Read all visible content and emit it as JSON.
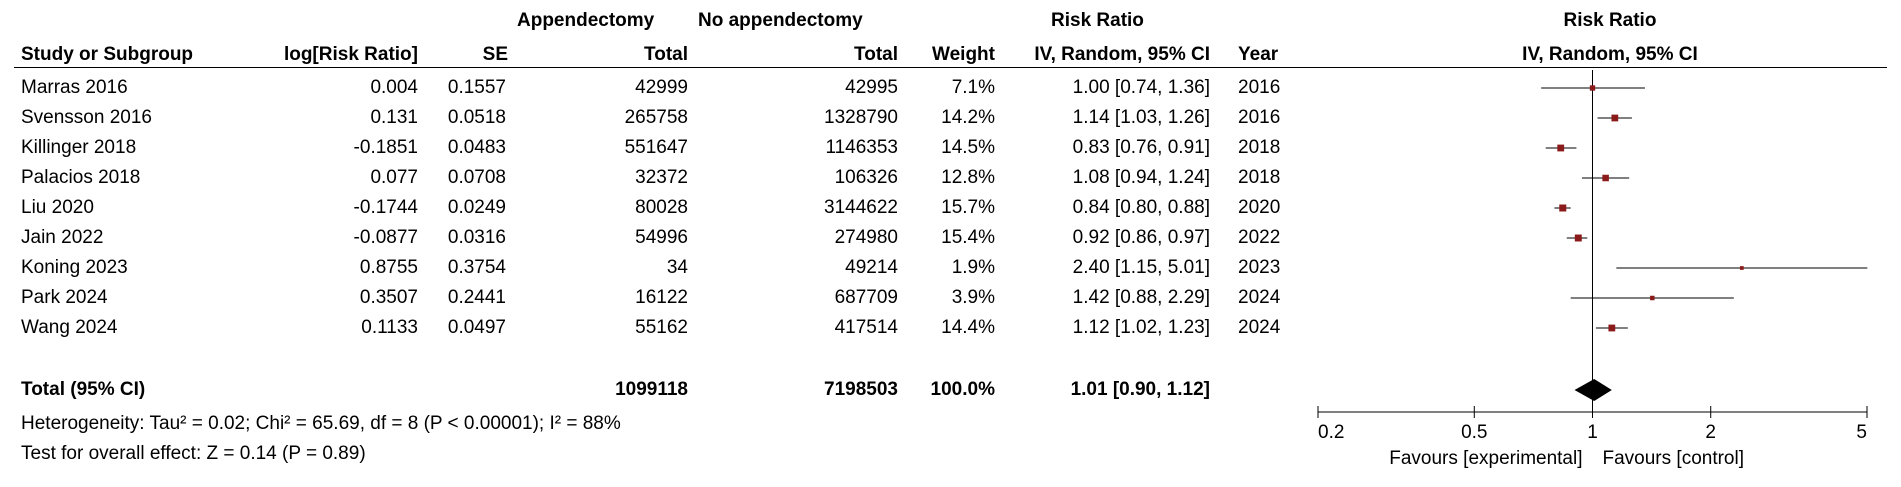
{
  "headers": {
    "group_appendectomy": "Appendectomy",
    "group_no_appendectomy": "No appendectomy",
    "group_risk_ratio": "Risk Ratio",
    "study": "Study or Subgroup",
    "log_rr": "log[Risk Ratio]",
    "se": "SE",
    "total_app": "Total",
    "total_noapp": "Total",
    "weight": "Weight",
    "ci_method": "IV, Random, 95% CI",
    "year": "Year",
    "plot_title": "Risk Ratio",
    "plot_method": "IV, Random, 95% CI"
  },
  "studies": [
    {
      "study": "Marras 2016",
      "log_rr": "0.004",
      "se": "0.1557",
      "total_app": "42999",
      "total_noapp": "42995",
      "weight": "7.1%",
      "ci": "1.00 [0.74, 1.36]",
      "year": "2016"
    },
    {
      "study": "Svensson 2016",
      "log_rr": "0.131",
      "se": "0.0518",
      "total_app": "265758",
      "total_noapp": "1328790",
      "weight": "14.2%",
      "ci": "1.14 [1.03, 1.26]",
      "year": "2016"
    },
    {
      "study": "Killinger 2018",
      "log_rr": "-0.1851",
      "se": "0.0483",
      "total_app": "551647",
      "total_noapp": "1146353",
      "weight": "14.5%",
      "ci": "0.83 [0.76, 0.91]",
      "year": "2018"
    },
    {
      "study": "Palacios 2018",
      "log_rr": "0.077",
      "se": "0.0708",
      "total_app": "32372",
      "total_noapp": "106326",
      "weight": "12.8%",
      "ci": "1.08 [0.94, 1.24]",
      "year": "2018"
    },
    {
      "study": "Liu 2020",
      "log_rr": "-0.1744",
      "se": "0.0249",
      "total_app": "80028",
      "total_noapp": "3144622",
      "weight": "15.7%",
      "ci": "0.84 [0.80, 0.88]",
      "year": "2020"
    },
    {
      "study": "Jain 2022",
      "log_rr": "-0.0877",
      "se": "0.0316",
      "total_app": "54996",
      "total_noapp": "274980",
      "weight": "15.4%",
      "ci": "0.92 [0.86, 0.97]",
      "year": "2022"
    },
    {
      "study": "Koning 2023",
      "log_rr": "0.8755",
      "se": "0.3754",
      "total_app": "34",
      "total_noapp": "49214",
      "weight": "1.9%",
      "ci": "2.40 [1.15, 5.01]",
      "year": "2023"
    },
    {
      "study": "Park 2024",
      "log_rr": "0.3507",
      "se": "0.2441",
      "total_app": "16122",
      "total_noapp": "687709",
      "weight": "3.9%",
      "ci": "1.42 [0.88, 2.29]",
      "year": "2024"
    },
    {
      "study": "Wang 2024",
      "log_rr": "0.1133",
      "se": "0.0497",
      "total_app": "55162",
      "total_noapp": "417514",
      "weight": "14.4%",
      "ci": "1.12 [1.02, 1.23]",
      "year": "2024"
    }
  ],
  "total": {
    "label": "Total (95% CI)",
    "total_app": "1099118",
    "total_noapp": "7198503",
    "weight": "100.0%",
    "ci": "1.01 [0.90, 1.12]"
  },
  "footnotes": {
    "heterogeneity": "Heterogeneity: Tau² = 0.02; Chi² = 65.69, df = 8 (P < 0.00001); I² = 88%",
    "overall_effect": "Test for overall effect: Z = 0.14 (P = 0.89)"
  },
  "chart_data": {
    "type": "scatter",
    "subtype": "forest",
    "title": "Risk Ratio",
    "subtitle": "IV, Random, 95% CI",
    "x_scale": "log",
    "xlim": [
      0.2,
      5
    ],
    "x_ticks": [
      0.2,
      0.5,
      1,
      2,
      5
    ],
    "x_tick_labels": [
      "0.2",
      "0.5",
      "1",
      "2",
      "5"
    ],
    "reference_line": 1,
    "xlabel_left": "Favours [experimental]",
    "xlabel_right": "Favours [control]",
    "marker_color": "#8b1a1a",
    "points": [
      {
        "label": "Marras 2016",
        "rr": 1.0,
        "lo": 0.74,
        "hi": 1.36,
        "weight": 7.1
      },
      {
        "label": "Svensson 2016",
        "rr": 1.14,
        "lo": 1.03,
        "hi": 1.26,
        "weight": 14.2
      },
      {
        "label": "Killinger 2018",
        "rr": 0.83,
        "lo": 0.76,
        "hi": 0.91,
        "weight": 14.5
      },
      {
        "label": "Palacios 2018",
        "rr": 1.08,
        "lo": 0.94,
        "hi": 1.24,
        "weight": 12.8
      },
      {
        "label": "Liu 2020",
        "rr": 0.84,
        "lo": 0.8,
        "hi": 0.88,
        "weight": 15.7
      },
      {
        "label": "Jain 2022",
        "rr": 0.92,
        "lo": 0.86,
        "hi": 0.97,
        "weight": 15.4
      },
      {
        "label": "Koning 2023",
        "rr": 2.4,
        "lo": 1.15,
        "hi": 5.01,
        "weight": 1.9
      },
      {
        "label": "Park 2024",
        "rr": 1.42,
        "lo": 0.88,
        "hi": 2.29,
        "weight": 3.9
      },
      {
        "label": "Wang 2024",
        "rr": 1.12,
        "lo": 1.02,
        "hi": 1.23,
        "weight": 14.4
      }
    ],
    "summary": {
      "label": "Total (95% CI)",
      "rr": 1.01,
      "lo": 0.9,
      "hi": 1.12
    }
  }
}
